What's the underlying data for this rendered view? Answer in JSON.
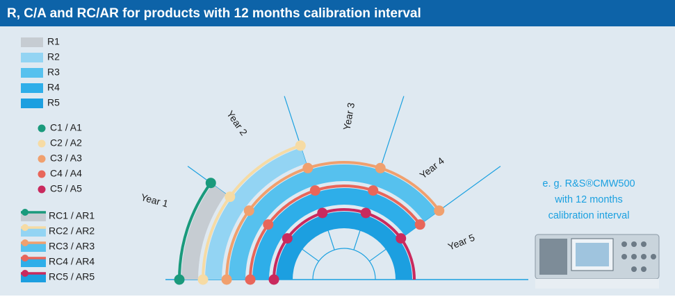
{
  "header": {
    "title": "R, C/A and RC/AR for products with 12 months calibration interval"
  },
  "legend": {
    "r": [
      "R1",
      "R2",
      "R3",
      "R4",
      "R5"
    ],
    "c": [
      "C1 / A1",
      "C2 / A2",
      "C3 / A3",
      "C4 / A4",
      "C5 / A5"
    ],
    "rc": [
      "RC1 / AR1",
      "RC2 / AR2",
      "RC3 / AR3",
      "RC4 / AR4",
      "RC5 / AR5"
    ]
  },
  "years": [
    "Year 1",
    "Year 2",
    "Year 3",
    "Year 4",
    "Year 5"
  ],
  "caption": [
    "e. g. R&S®CMW500",
    "with 12 months",
    "calibration interval"
  ]
}
